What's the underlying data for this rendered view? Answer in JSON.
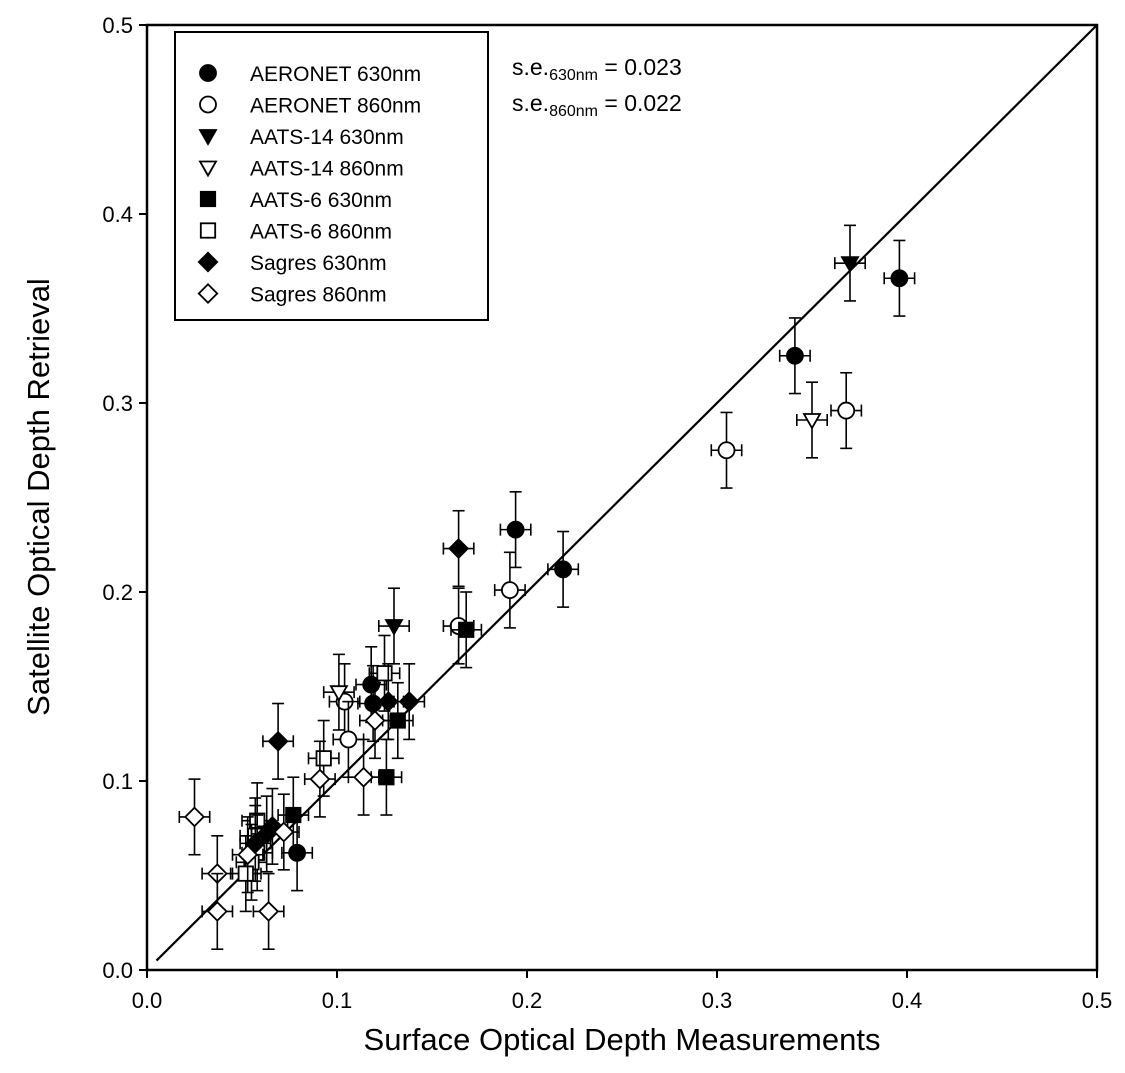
{
  "chart_data": {
    "type": "scatter",
    "xlabel": "Surface Optical Depth Measurements",
    "ylabel": "Satellite Optical Depth Retrieval",
    "xlim": [
      0.0,
      0.5
    ],
    "ylim": [
      0.0,
      0.5
    ],
    "xticks": [
      "0.0",
      "0.1",
      "0.2",
      "0.3",
      "0.4",
      "0.5"
    ],
    "yticks": [
      "0.0",
      "0.1",
      "0.2",
      "0.3",
      "0.4",
      "0.5"
    ],
    "grid": false,
    "legend_position": "top-left",
    "reference_line": {
      "type": "one-to-one",
      "from": [
        0.005,
        0.005
      ],
      "to": [
        0.5,
        0.5
      ]
    },
    "annotations": [
      {
        "prefix": "s.e.",
        "sub": "630nm",
        "suffix": " = 0.023"
      },
      {
        "prefix": "s.e.",
        "sub": "860nm",
        "suffix": " = 0.022"
      }
    ],
    "series": [
      {
        "name": "AERONET 630nm",
        "marker": "circle",
        "filled": true,
        "points": [
          [
            0.396,
            0.366
          ],
          [
            0.341,
            0.325
          ],
          [
            0.219,
            0.212
          ],
          [
            0.194,
            0.233
          ],
          [
            0.118,
            0.151
          ],
          [
            0.119,
            0.141
          ],
          [
            0.079,
            0.062
          ]
        ]
      },
      {
        "name": "AERONET 860nm",
        "marker": "circle",
        "filled": false,
        "points": [
          [
            0.368,
            0.296
          ],
          [
            0.305,
            0.275
          ],
          [
            0.191,
            0.201
          ],
          [
            0.164,
            0.182
          ],
          [
            0.104,
            0.142
          ],
          [
            0.106,
            0.122
          ]
        ]
      },
      {
        "name": "AATS-14 630nm",
        "marker": "triangle-down",
        "filled": true,
        "points": [
          [
            0.37,
            0.374
          ],
          [
            0.13,
            0.182
          ]
        ]
      },
      {
        "name": "AATS-14 860nm",
        "marker": "triangle-down",
        "filled": false,
        "points": [
          [
            0.35,
            0.291
          ],
          [
            0.101,
            0.147
          ]
        ]
      },
      {
        "name": "AATS-6 630nm",
        "marker": "square",
        "filled": true,
        "points": [
          [
            0.168,
            0.18
          ],
          [
            0.132,
            0.132
          ],
          [
            0.126,
            0.102
          ],
          [
            0.077,
            0.082
          ]
        ]
      },
      {
        "name": "AATS-6 860nm",
        "marker": "square",
        "filled": false,
        "points": [
          [
            0.125,
            0.157
          ],
          [
            0.093,
            0.112
          ],
          [
            0.058,
            0.079
          ],
          [
            0.057,
            0.071
          ],
          [
            0.058,
            0.062
          ],
          [
            0.055,
            0.057
          ],
          [
            0.052,
            0.051
          ]
        ]
      },
      {
        "name": "Sagres 630nm",
        "marker": "diamond",
        "filled": true,
        "points": [
          [
            0.164,
            0.223
          ],
          [
            0.138,
            0.142
          ],
          [
            0.127,
            0.142
          ],
          [
            0.069,
            0.121
          ],
          [
            0.066,
            0.076
          ],
          [
            0.063,
            0.072
          ],
          [
            0.057,
            0.067
          ]
        ]
      },
      {
        "name": "Sagres 860nm",
        "marker": "diamond",
        "filled": false,
        "points": [
          [
            0.12,
            0.132
          ],
          [
            0.114,
            0.102
          ],
          [
            0.091,
            0.101
          ],
          [
            0.072,
            0.073
          ],
          [
            0.064,
            0.031
          ],
          [
            0.053,
            0.061
          ],
          [
            0.025,
            0.081
          ],
          [
            0.037,
            0.051
          ],
          [
            0.037,
            0.031
          ]
        ]
      }
    ]
  }
}
